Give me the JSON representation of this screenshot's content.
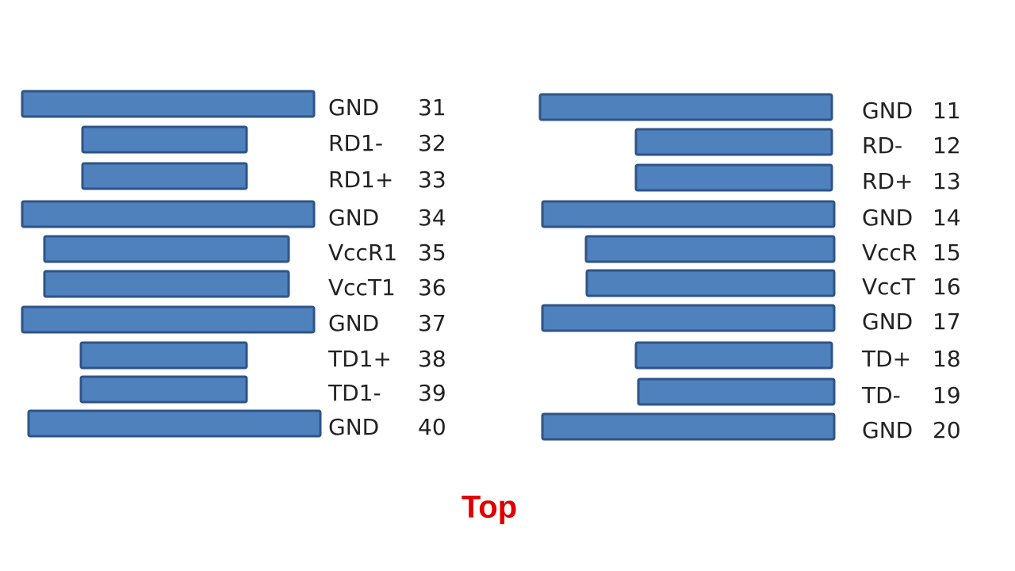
{
  "left_pins": [
    {
      "label": "GND",
      "number": 31
    },
    {
      "label": "RD1-",
      "number": 32
    },
    {
      "label": "RD1+",
      "number": 33
    },
    {
      "label": "GND",
      "number": 34
    },
    {
      "label": "VccR1",
      "number": 35
    },
    {
      "label": "VccT1",
      "number": 36
    },
    {
      "label": "GND",
      "number": 37
    },
    {
      "label": "TD1+",
      "number": 38
    },
    {
      "label": "TD1-",
      "number": 39
    },
    {
      "label": "GND",
      "number": 40
    }
  ],
  "right_pins": [
    {
      "label": "GND",
      "number": 11
    },
    {
      "label": "RD-",
      "number": 12
    },
    {
      "label": "RD+",
      "number": 13
    },
    {
      "label": "GND",
      "number": 14
    },
    {
      "label": "VccR",
      "number": 15
    },
    {
      "label": "VccT",
      "number": 16
    },
    {
      "label": "GND",
      "number": 17
    },
    {
      "label": "TD+",
      "number": 18
    },
    {
      "label": "TD-",
      "number": 19
    },
    {
      "label": "GND",
      "number": 20
    }
  ],
  "caption": "Top"
}
